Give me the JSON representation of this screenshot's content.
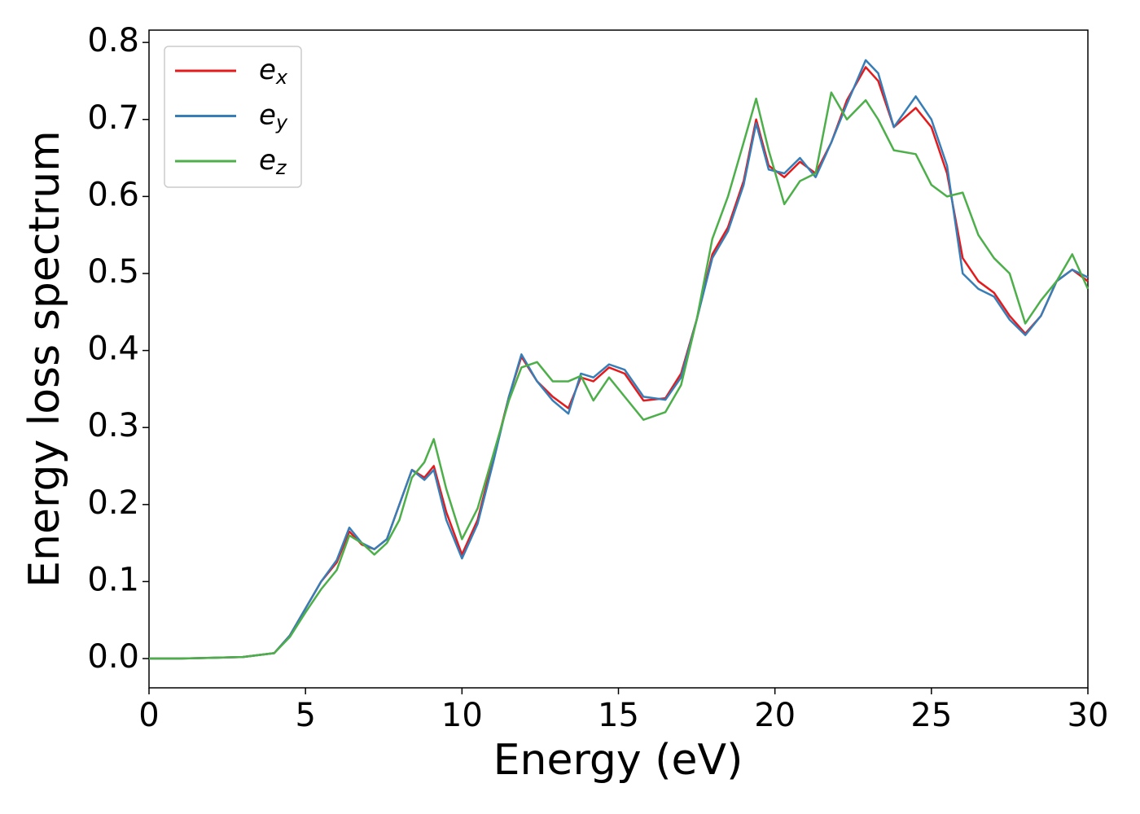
{
  "chart_data": {
    "type": "line",
    "xlabel": "Energy (eV)",
    "ylabel": "Energy loss spectrum",
    "x": [
      0,
      1,
      2,
      3,
      4,
      4.5,
      5,
      5.5,
      6,
      6.4,
      6.8,
      7.2,
      7.6,
      8,
      8.4,
      8.8,
      9.1,
      9.5,
      10,
      10.5,
      11,
      11.5,
      11.9,
      12.4,
      12.9,
      13.4,
      13.8,
      14.2,
      14.7,
      15.2,
      15.8,
      16.5,
      17,
      17.5,
      18,
      18.5,
      19,
      19.4,
      19.8,
      20.3,
      20.8,
      21.3,
      21.8,
      22.3,
      22.9,
      23.3,
      23.8,
      24.5,
      25,
      25.5,
      26,
      26.5,
      27,
      27.5,
      28,
      28.5,
      29,
      29.5,
      30
    ],
    "series": [
      {
        "name": "ex",
        "color": "#e41a1c",
        "values": [
          0,
          0,
          0.001,
          0.002,
          0.007,
          0.03,
          0.065,
          0.1,
          0.125,
          0.165,
          0.148,
          0.142,
          0.155,
          0.2,
          0.245,
          0.235,
          0.25,
          0.19,
          0.135,
          0.18,
          0.26,
          0.34,
          0.392,
          0.36,
          0.34,
          0.325,
          0.365,
          0.36,
          0.378,
          0.37,
          0.335,
          0.338,
          0.37,
          0.44,
          0.525,
          0.56,
          0.62,
          0.7,
          0.64,
          0.625,
          0.645,
          0.63,
          0.67,
          0.725,
          0.768,
          0.75,
          0.69,
          0.715,
          0.69,
          0.63,
          0.52,
          0.49,
          0.475,
          0.445,
          0.422,
          0.445,
          0.49,
          0.505,
          0.49
        ]
      },
      {
        "name": "ey",
        "color": "#377eb8",
        "values": [
          0,
          0,
          0.001,
          0.002,
          0.007,
          0.03,
          0.065,
          0.1,
          0.128,
          0.17,
          0.15,
          0.142,
          0.155,
          0.2,
          0.245,
          0.232,
          0.245,
          0.18,
          0.13,
          0.175,
          0.255,
          0.34,
          0.395,
          0.36,
          0.335,
          0.318,
          0.37,
          0.365,
          0.382,
          0.375,
          0.34,
          0.336,
          0.365,
          0.44,
          0.52,
          0.555,
          0.615,
          0.695,
          0.635,
          0.63,
          0.65,
          0.625,
          0.67,
          0.72,
          0.777,
          0.76,
          0.69,
          0.73,
          0.7,
          0.64,
          0.5,
          0.48,
          0.47,
          0.44,
          0.42,
          0.445,
          0.49,
          0.505,
          0.495
        ]
      },
      {
        "name": "ez",
        "color": "#4daf4a",
        "values": [
          0,
          0,
          0.001,
          0.002,
          0.007,
          0.028,
          0.06,
          0.09,
          0.115,
          0.16,
          0.15,
          0.135,
          0.15,
          0.18,
          0.235,
          0.255,
          0.285,
          0.22,
          0.155,
          0.195,
          0.265,
          0.335,
          0.378,
          0.385,
          0.36,
          0.36,
          0.367,
          0.335,
          0.365,
          0.34,
          0.31,
          0.32,
          0.355,
          0.44,
          0.545,
          0.6,
          0.67,
          0.727,
          0.66,
          0.59,
          0.62,
          0.63,
          0.735,
          0.7,
          0.725,
          0.7,
          0.66,
          0.655,
          0.615,
          0.6,
          0.605,
          0.55,
          0.52,
          0.5,
          0.435,
          0.465,
          0.49,
          0.525,
          0.48
        ]
      }
    ],
    "xlim": [
      0,
      30
    ],
    "xticks": [
      0,
      5,
      10,
      15,
      20,
      25,
      30
    ],
    "ylim": [
      -0.038,
      0.816
    ],
    "yticks": [
      {
        "value": 0,
        "label": "0.0"
      },
      0.1,
      0.2,
      0.3,
      0.4,
      0.5,
      0.6,
      0.7,
      0.8
    ],
    "legend": "upper left",
    "grid": false
  }
}
